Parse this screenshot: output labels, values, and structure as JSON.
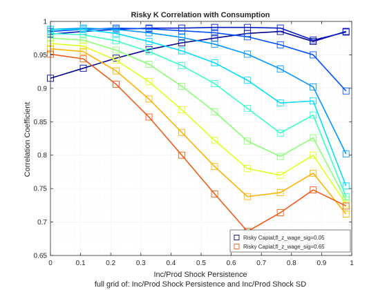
{
  "chart_data": {
    "type": "line",
    "title": "Risky K Correlation with Consumption",
    "xlabel": "Inc/Prod Shock Persistence",
    "ylabel": "Correlation Coefficient",
    "subtitle_bottom": "full grid of: Inc/Prod Shock Persistence and Inc/Prod Shock SD",
    "xlim": [
      0,
      1
    ],
    "ylim": [
      0.65,
      1
    ],
    "grid": "on (major + minor)",
    "legend_position": "bottom-right",
    "x": [
      0,
      0.109,
      0.218,
      0.327,
      0.436,
      0.545,
      0.654,
      0.763,
      0.872,
      0.981
    ],
    "x_ticks": [
      "0",
      "0.1",
      "0.2",
      "0.3",
      "0.4",
      "0.5",
      "0.6",
      "0.7",
      "0.8",
      "0.9",
      "1"
    ],
    "y_ticks": [
      "0.65",
      "0.7",
      "0.75",
      "0.8",
      "0.85",
      "0.9",
      "0.95",
      "1"
    ],
    "series": [
      {
        "name": "Risky Capial;fl_z_wage_sig=0.05",
        "color": "#00008f",
        "values": [
          0.915,
          0.93,
          0.945,
          0.958,
          0.968,
          0.975,
          0.982,
          0.985,
          0.97,
          0.985
        ]
      },
      {
        "color": "#0018c8",
        "values": [
          0.981,
          0.985,
          0.988,
          0.99,
          0.99,
          0.991,
          0.991,
          0.99,
          0.972,
          0.984
        ]
      },
      {
        "color": "#0050ff",
        "values": [
          0.985,
          0.988,
          0.99,
          0.989,
          0.986,
          0.983,
          0.977,
          0.965,
          0.95,
          0.896
        ]
      },
      {
        "color": "#0096ff",
        "values": [
          0.988,
          0.99,
          0.988,
          0.983,
          0.976,
          0.966,
          0.951,
          0.929,
          0.902,
          0.802
        ]
      },
      {
        "color": "#00dcff",
        "values": [
          0.988,
          0.988,
          0.982,
          0.97,
          0.956,
          0.938,
          0.912,
          0.878,
          0.881,
          0.754
        ]
      },
      {
        "color": "#36ffc9",
        "values": [
          0.982,
          0.98,
          0.971,
          0.955,
          0.934,
          0.907,
          0.87,
          0.833,
          0.86,
          0.738
        ]
      },
      {
        "color": "#8bff74",
        "values": [
          0.975,
          0.972,
          0.957,
          0.936,
          0.903,
          0.865,
          0.821,
          0.798,
          0.826,
          0.733
        ]
      },
      {
        "color": "#e0ff1f",
        "values": [
          0.967,
          0.963,
          0.942,
          0.91,
          0.868,
          0.822,
          0.78,
          0.77,
          0.8,
          0.727
        ]
      },
      {
        "color": "#ffb200",
        "values": [
          0.959,
          0.955,
          0.926,
          0.884,
          0.834,
          0.783,
          0.738,
          0.744,
          0.773,
          0.712
        ]
      },
      {
        "name": "Risky Capial;fl_z_wage_sig=0.65",
        "color": "#f05a14",
        "values": [
          0.951,
          0.944,
          0.906,
          0.857,
          0.8,
          0.742,
          0.686,
          0.714,
          0.748,
          0.724
        ]
      }
    ]
  }
}
